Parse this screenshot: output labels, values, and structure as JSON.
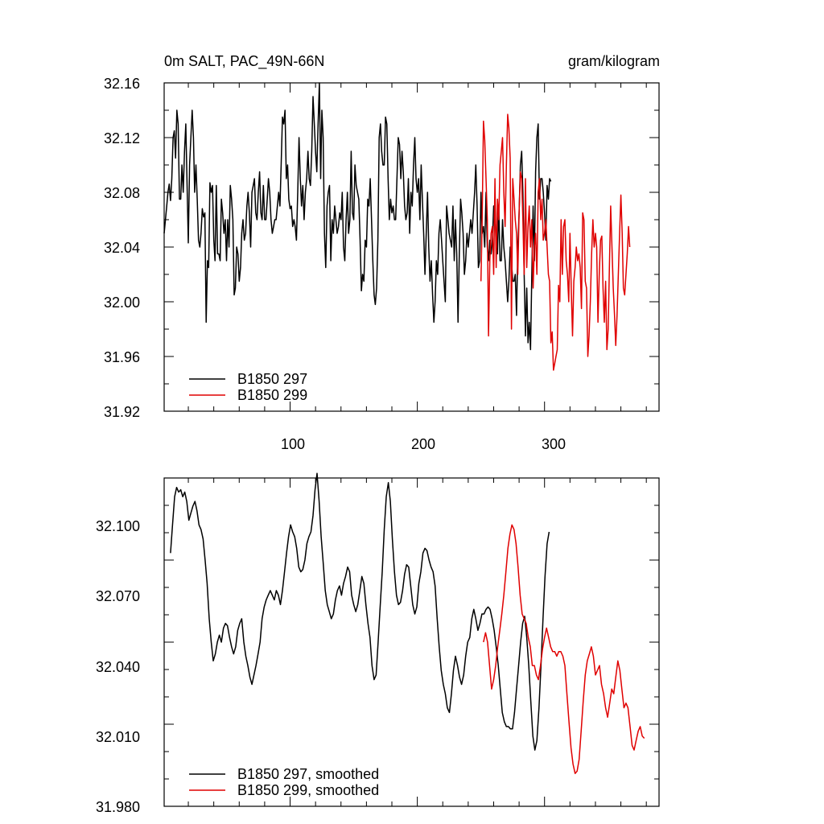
{
  "colors": {
    "series_a": "#000000",
    "series_b": "#e00000"
  },
  "chart_data": [
    {
      "type": "line",
      "title_left": "0m SALT, PAC_49N-66N",
      "title_right": "gram/kilogram",
      "xlim": [
        1,
        390
      ],
      "ylim": [
        31.92,
        32.16
      ],
      "yticks": [
        "32.16",
        "32.12",
        "32.08",
        "32.04",
        "32.00",
        "31.96",
        "31.92"
      ],
      "xticks": [
        "100",
        "200",
        "300"
      ],
      "legend": {
        "position": "bottom-left",
        "entries": [
          "B1850 297",
          "B1850 299"
        ]
      },
      "series": [
        {
          "name": "B1850 297",
          "x_start": 1,
          "values": [
            32.05,
            32.06,
            32.07,
            32.08,
            32.086,
            32.074,
            32.09,
            32.12,
            32.125,
            32.105,
            32.14,
            32.13,
            32.075,
            32.075,
            32.1,
            32.08,
            32.11,
            32.13,
            32.085,
            32.043,
            32.1,
            32.12,
            32.14,
            32.12,
            32.08,
            32.1,
            32.075,
            32.045,
            32.04,
            32.05,
            32.068,
            32.062,
            32.065,
            31.985,
            32.03,
            32.025,
            32.087,
            32.08,
            32.085,
            32.045,
            32.03,
            32.085,
            32.035,
            32.035,
            32.03,
            32.075,
            32.065,
            32.05,
            32.06,
            32.03,
            32.06,
            32.04,
            32.085,
            32.075,
            32.06,
            32.005,
            32.01,
            32.04,
            32.035,
            32.015,
            32.025,
            32.05,
            32.06,
            32.045,
            32.05,
            32.07,
            32.08,
            32.065,
            32.04,
            32.08,
            32.085,
            32.09,
            32.065,
            32.06,
            32.08,
            32.095,
            32.065,
            32.06,
            32.085,
            32.06,
            32.06,
            32.075,
            32.09,
            32.08,
            32.06,
            32.05,
            32.055,
            32.06,
            32.06,
            32.07,
            32.08,
            32.07,
            32.1,
            32.135,
            32.13,
            32.14,
            32.09,
            32.1,
            32.075,
            32.068,
            32.07,
            32.055,
            32.06,
            32.055,
            32.045,
            32.08,
            32.12,
            32.09,
            32.07,
            32.085,
            32.06,
            32.08,
            32.09,
            32.11,
            32.09,
            32.085,
            32.11,
            32.15,
            32.13,
            32.11,
            32.095,
            32.13,
            32.16,
            32.09,
            32.14,
            32.12,
            32.05,
            32.025,
            32.07,
            32.08,
            32.085,
            32.03,
            32.06,
            32.05,
            32.07,
            32.06,
            32.05,
            32.055,
            32.065,
            32.06,
            32.08,
            32.04,
            32.03,
            32.06,
            32.08,
            32.05,
            32.06,
            32.11,
            32.065,
            32.06,
            32.1,
            32.085,
            32.08,
            32.075,
            32.045,
            32.008,
            32.02,
            32.015,
            32.045,
            32.04,
            32.075,
            32.07,
            32.09,
            32.06,
            32.03,
            32.005,
            31.998,
            32.01,
            32.045,
            32.12,
            32.13,
            32.11,
            32.1,
            32.1,
            32.135,
            32.13,
            32.09,
            32.06,
            32.075,
            32.065,
            32.07,
            32.06,
            32.06,
            32.09,
            32.12,
            32.115,
            32.09,
            32.11,
            32.095,
            32.07,
            32.06,
            32.065,
            32.09,
            32.05,
            32.08,
            32.07,
            32.1,
            32.12,
            32.09,
            32.08,
            32.09,
            32.06,
            32.1,
            32.075,
            32.05,
            32.02,
            32.05,
            32.08,
            32.04,
            32.015,
            32.03,
            32.005,
            31.985,
            32.0,
            32.03,
            32.02,
            32.05,
            32.06,
            32.045,
            32.03,
            32.015,
            32.0,
            32.07,
            32.06,
            32.05,
            32.045,
            32.04,
            32.07,
            32.03,
            32.06,
            32.035,
            31.985,
            32.035,
            32.075,
            32.065,
            32.05,
            32.02,
            32.03,
            32.05,
            32.04,
            32.05,
            32.06,
            32.05,
            32.065,
            32.08,
            32.1,
            32.07,
            32.025,
            32.03,
            32.08,
            32.05,
            32.055,
            32.04,
            32.08,
            32.04,
            32.03,
            32.045,
            32.035,
            32.045,
            32.07,
            32.07,
            32.04,
            32.035,
            32.07,
            32.03,
            32.03,
            32.06,
            32.04,
            32.03,
            32.015,
            32.0,
            32.015,
            32.04,
            32.03,
            32.015,
            32.015,
            32.02,
            31.99,
            32.04,
            32.065,
            32.1,
            32.11,
            32.08,
            32.02,
            31.975,
            32.01,
            31.97,
            31.985,
            31.965,
            32.02,
            32.07,
            32.03,
            32.095,
            32.12,
            32.13,
            32.075,
            32.09,
            32.09,
            32.08,
            32.065,
            32.045,
            32.085,
            32.075,
            32.09,
            32.088
          ]
        },
        {
          "name": "B1850 299",
          "x_start": 250,
          "values": [
            32.015,
            32.06,
            32.132,
            32.118,
            32.09,
            32.06,
            31.975,
            32.03,
            32.05,
            32.055,
            32.02,
            32.09,
            32.025,
            32.075,
            32.06,
            32.1,
            32.11,
            32.12,
            32.08,
            32.055,
            32.1,
            32.137,
            32.127,
            32.105,
            31.98,
            32.09,
            32.075,
            32.06,
            32.05,
            32.02,
            32.065,
            32.095,
            32.09,
            32.06,
            32.02,
            32.09,
            32.025,
            32.055,
            32.07,
            32.04,
            32.06,
            32.01,
            32.04,
            32.05,
            32.02,
            32.08,
            32.09,
            32.06,
            32.075,
            32.045,
            32.05,
            32.06,
            32.04,
            32.02,
            32.015,
            31.97,
            31.978,
            31.95,
            31.955,
            31.96,
            31.965,
            32.012,
            32.0,
            32.06,
            32.02,
            32.055,
            32.06,
            32.03,
            32.02,
            32.0,
            32.05,
            32.01,
            31.975,
            32.015,
            32.025,
            32.04,
            32.03,
            32.035,
            32.025,
            31.995,
            32.065,
            32.06,
            32.015,
            32.01,
            31.96,
            31.975,
            32.0,
            32.035,
            32.06,
            32.04,
            32.05,
            32.04,
            31.985,
            32.02,
            32.045,
            32.048,
            32.01,
            31.985,
            32.015,
            31.965,
            31.98,
            32.025,
            32.07,
            32.04,
            32.01,
            31.99,
            31.968,
            31.99,
            32.02,
            32.05,
            32.078,
            32.05,
            32.01,
            32.005,
            32.02,
            32.035,
            32.055,
            32.04
          ]
        }
      ]
    },
    {
      "type": "line",
      "xlim": [
        1,
        390
      ],
      "ylim": [
        31.98,
        32.12
      ],
      "yticks": [
        "32.100",
        "32.070",
        "32.040",
        "32.010",
        "31.980"
      ],
      "legend": {
        "position": "bottom-left",
        "entries": [
          "B1850 297, smoothed",
          "B1850 299, smoothed"
        ]
      },
      "series": [
        {
          "name": "B1850 297, smoothed",
          "x_start": 6,
          "values": [
            32.088,
            32.1,
            32.112,
            32.116,
            32.114,
            32.115,
            32.112,
            32.114,
            32.11,
            32.102,
            32.105,
            32.108,
            32.11,
            32.106,
            32.1,
            32.098,
            32.094,
            32.085,
            32.075,
            32.06,
            32.05,
            32.042,
            32.045,
            32.05,
            32.053,
            32.05,
            32.056,
            32.058,
            32.057,
            32.052,
            32.048,
            32.045,
            32.048,
            32.055,
            32.058,
            32.06,
            32.05,
            32.044,
            32.04,
            32.035,
            32.032,
            32.036,
            32.04,
            32.045,
            32.05,
            32.06,
            32.065,
            32.068,
            32.07,
            32.072,
            32.07,
            32.068,
            32.072,
            32.07,
            32.066,
            32.072,
            32.08,
            32.088,
            32.095,
            32.1,
            32.097,
            32.095,
            32.09,
            32.082,
            32.08,
            32.081,
            32.085,
            32.092,
            32.095,
            32.097,
            32.104,
            32.115,
            32.122,
            32.11,
            32.095,
            32.084,
            32.072,
            32.066,
            32.063,
            32.06,
            32.062,
            32.068,
            32.072,
            32.074,
            32.07,
            32.075,
            32.078,
            32.082,
            32.08,
            32.07,
            32.066,
            32.063,
            32.066,
            32.072,
            32.078,
            32.075,
            32.066,
            32.058,
            32.052,
            32.04,
            32.034,
            32.036,
            32.05,
            32.065,
            32.08,
            32.098,
            32.112,
            32.118,
            32.11,
            32.094,
            32.08,
            32.07,
            32.066,
            32.067,
            32.072,
            32.079,
            32.083,
            32.082,
            32.074,
            32.066,
            32.062,
            32.065,
            32.075,
            32.08,
            32.088,
            32.09,
            32.089,
            32.085,
            32.082,
            32.08,
            32.074,
            32.06,
            32.048,
            32.038,
            32.032,
            32.028,
            32.022,
            32.02,
            32.028,
            32.038,
            32.044,
            32.04,
            32.035,
            32.032,
            32.036,
            32.044,
            32.05,
            32.052,
            32.06,
            32.064,
            32.06,
            32.055,
            32.058,
            32.062,
            32.062,
            32.064,
            32.065,
            32.064,
            32.06,
            32.055,
            32.048,
            32.04,
            32.03,
            32.02,
            32.016,
            32.014,
            32.014,
            32.013,
            32.013,
            32.02,
            32.03,
            32.04,
            32.05,
            32.058,
            32.061,
            32.052,
            32.04,
            32.025,
            32.01,
            32.004,
            32.008,
            32.022,
            32.04,
            32.06,
            32.078,
            32.092,
            32.097
          ]
        },
        {
          "name": "B1850 299, smoothed",
          "x_start": 252,
          "values": [
            32.05,
            32.054,
            32.05,
            32.04,
            32.03,
            32.034,
            32.04,
            32.048,
            32.055,
            32.062,
            32.07,
            32.08,
            32.09,
            32.096,
            32.1,
            32.098,
            32.092,
            32.082,
            32.07,
            32.062,
            32.06,
            32.058,
            32.052,
            32.048,
            32.04,
            32.04,
            32.036,
            32.034,
            32.04,
            32.047,
            32.052,
            32.056,
            32.052,
            32.048,
            32.046,
            32.046,
            32.044,
            32.046,
            32.046,
            32.044,
            32.04,
            32.028,
            32.016,
            32.005,
            31.998,
            31.994,
            31.995,
            32.0,
            32.012,
            32.025,
            32.036,
            32.042,
            32.045,
            32.048,
            32.044,
            32.036,
            32.038,
            32.04,
            32.032,
            32.028,
            32.022,
            32.018,
            32.024,
            32.03,
            32.028,
            32.035,
            32.042,
            32.038,
            32.03,
            32.022,
            32.024,
            32.022,
            32.014,
            32.006,
            32.004,
            32.008,
            32.012,
            32.014,
            32.01,
            32.009
          ]
        }
      ]
    }
  ]
}
